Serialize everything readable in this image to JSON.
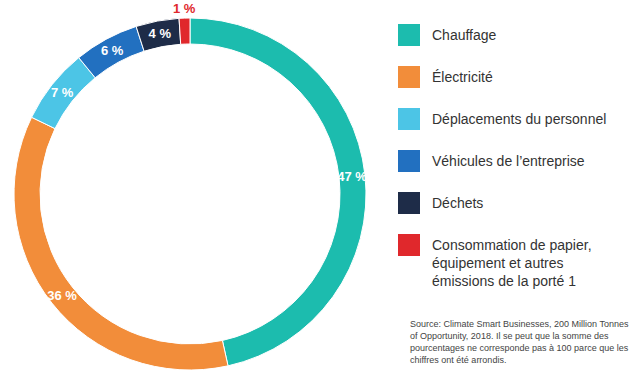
{
  "chart_data": {
    "type": "pie",
    "donut": true,
    "categories": [
      "Chauffage",
      "Électricité",
      "Déplacements du personnel",
      "Véhicules de l’entreprise",
      "Déchets",
      "Consommation de papier, équipement et autres émissions de la porté 1"
    ],
    "values": [
      47,
      36,
      7,
      6,
      4,
      1
    ],
    "value_labels": [
      "47 %",
      "36 %",
      "7 %",
      "6 %",
      "4 %",
      "1 %"
    ],
    "colors": [
      "#1cbcae",
      "#f28d3a",
      "#4cc5e6",
      "#2270c0",
      "#1e2c48",
      "#e0282c"
    ],
    "data_labels": true,
    "legend": "right",
    "annotations": [
      "Source: Climate Smart Businesses, 200 Million Tonnes of Opportunity, 2018. Il se peut que la somme des pourcentages ne corresponde pas à 100 parce que les chiffres ont été arrondis."
    ]
  }
}
